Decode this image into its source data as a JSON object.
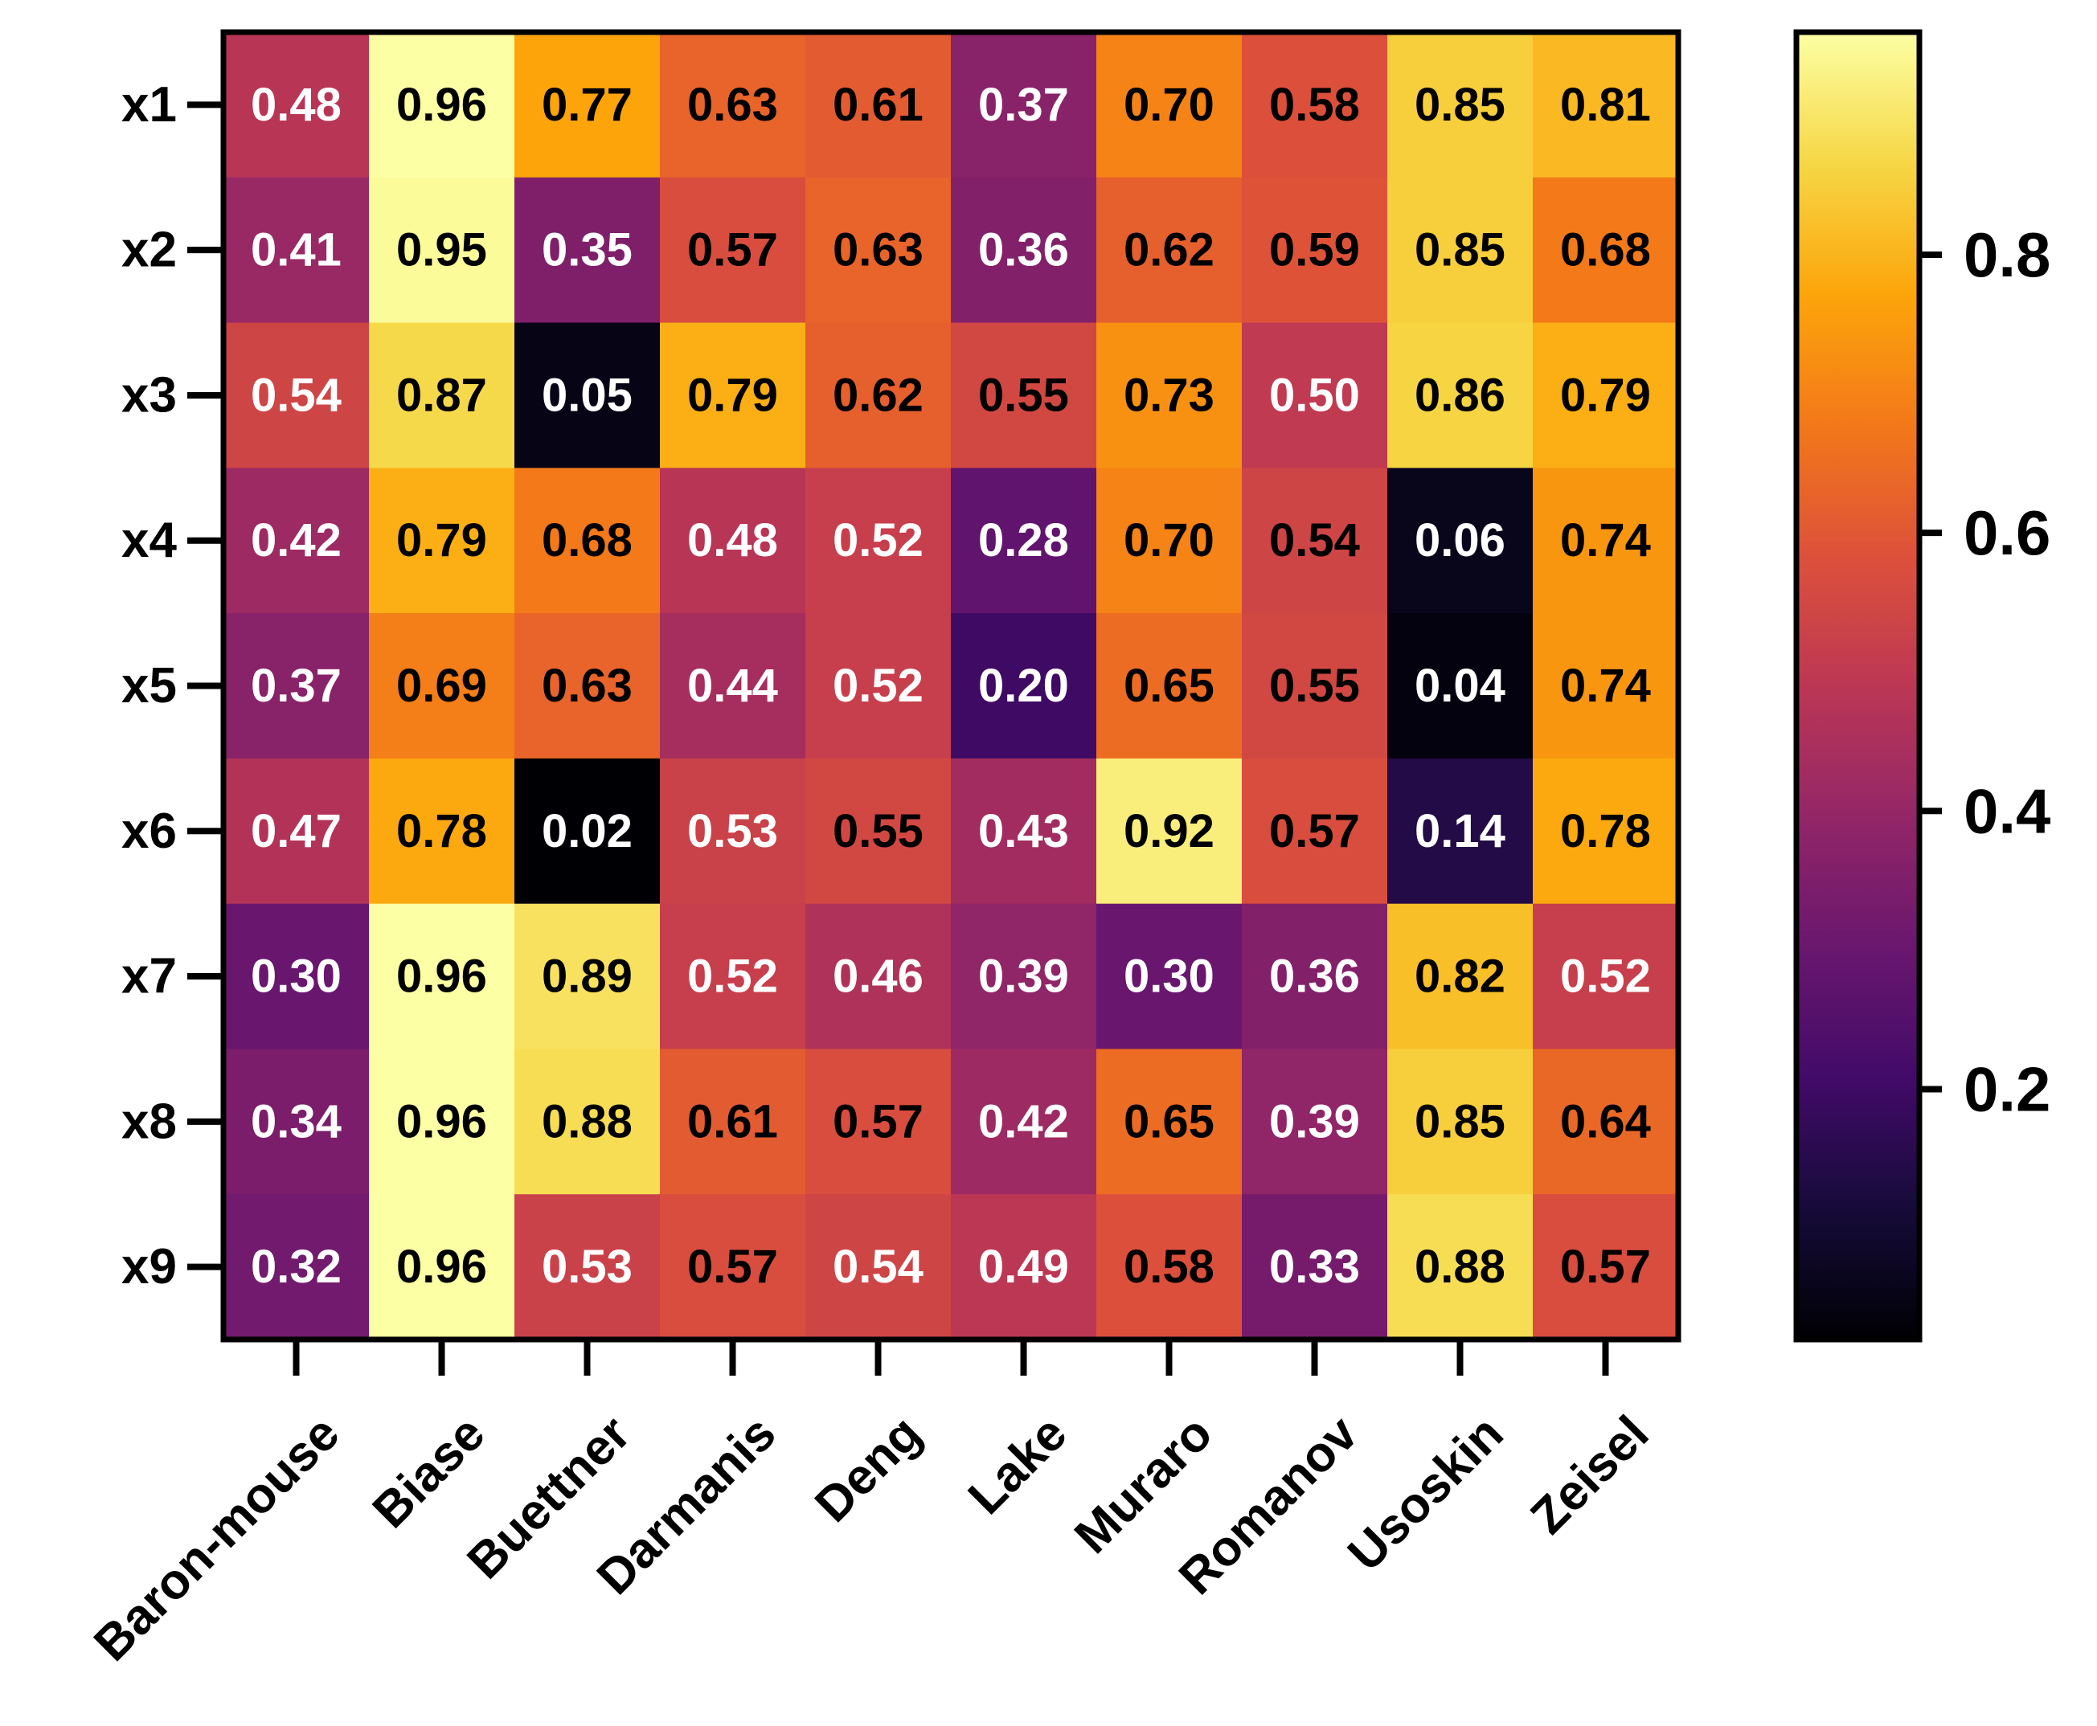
{
  "chart_data": {
    "type": "heatmap",
    "title": "",
    "xlabel": "",
    "ylabel": "",
    "colormap": "inferno",
    "x_categories": [
      "Baron-mouse",
      "Biase",
      "Buettner",
      "Darmanis",
      "Deng",
      "Lake",
      "Muraro",
      "Romanov",
      "Usoskin",
      "Zeisel"
    ],
    "y_categories": [
      "x1",
      "x2",
      "x3",
      "x4",
      "x5",
      "x6",
      "x7",
      "x8",
      "x9"
    ],
    "values": [
      [
        0.48,
        0.96,
        0.77,
        0.63,
        0.61,
        0.37,
        0.7,
        0.58,
        0.85,
        0.81
      ],
      [
        0.41,
        0.95,
        0.35,
        0.57,
        0.63,
        0.36,
        0.62,
        0.59,
        0.85,
        0.68
      ],
      [
        0.54,
        0.87,
        0.05,
        0.79,
        0.62,
        0.55,
        0.73,
        0.5,
        0.86,
        0.79
      ],
      [
        0.42,
        0.79,
        0.68,
        0.48,
        0.52,
        0.28,
        0.7,
        0.54,
        0.06,
        0.74
      ],
      [
        0.37,
        0.69,
        0.63,
        0.44,
        0.52,
        0.2,
        0.65,
        0.55,
        0.04,
        0.74
      ],
      [
        0.47,
        0.78,
        0.02,
        0.53,
        0.55,
        0.43,
        0.92,
        0.57,
        0.14,
        0.78
      ],
      [
        0.3,
        0.96,
        0.89,
        0.52,
        0.46,
        0.39,
        0.3,
        0.36,
        0.82,
        0.52
      ],
      [
        0.34,
        0.96,
        0.88,
        0.61,
        0.57,
        0.42,
        0.65,
        0.39,
        0.85,
        0.64
      ],
      [
        0.32,
        0.96,
        0.53,
        0.57,
        0.54,
        0.49,
        0.58,
        0.33,
        0.88,
        0.57
      ]
    ],
    "value_labels": [
      [
        "0.48",
        "0.96",
        "0.77",
        "0.63",
        "0.61",
        "0.37",
        "0.70",
        "0.58",
        "0.85",
        "0.81"
      ],
      [
        "0.41",
        "0.95",
        "0.35",
        "0.57",
        "0.63",
        "0.36",
        "0.62",
        "0.59",
        "0.85",
        "0.68"
      ],
      [
        "0.54",
        "0.87",
        "0.05",
        "0.79",
        "0.62",
        "0.55",
        "0.73",
        "0.50",
        "0.86",
        "0.79"
      ],
      [
        "0.42",
        "0.79",
        "0.68",
        "0.48",
        "0.52",
        "0.28",
        "0.70",
        "0.54",
        "0.06",
        "0.74"
      ],
      [
        "0.37",
        "0.69",
        "0.63",
        "0.44",
        "0.52",
        "0.20",
        "0.65",
        "0.55",
        "0.04",
        "0.74"
      ],
      [
        "0.47",
        "0.78",
        "0.02",
        "0.53",
        "0.55",
        "0.43",
        "0.92",
        "0.57",
        "0.14",
        "0.78"
      ],
      [
        "0.30",
        "0.96",
        "0.89",
        "0.52",
        "0.46",
        "0.39",
        "0.30",
        "0.36",
        "0.82",
        "0.52"
      ],
      [
        "0.34",
        "0.96",
        "0.88",
        "0.61",
        "0.57",
        "0.42",
        "0.65",
        "0.39",
        "0.85",
        "0.64"
      ],
      [
        "0.32",
        "0.96",
        "0.53",
        "0.57",
        "0.54",
        "0.49",
        "0.58",
        "0.33",
        "0.88",
        "0.57"
      ]
    ],
    "label_colors": [
      [
        "w",
        "k",
        "k",
        "k",
        "k",
        "w",
        "k",
        "k",
        "k",
        "k"
      ],
      [
        "w",
        "k",
        "w",
        "k",
        "k",
        "w",
        "k",
        "k",
        "k",
        "k"
      ],
      [
        "w",
        "k",
        "w",
        "k",
        "k",
        "k",
        "k",
        "w",
        "k",
        "k"
      ],
      [
        "w",
        "k",
        "k",
        "w",
        "w",
        "w",
        "k",
        "k",
        "w",
        "k"
      ],
      [
        "w",
        "k",
        "k",
        "w",
        "w",
        "w",
        "k",
        "k",
        "w",
        "k"
      ],
      [
        "w",
        "k",
        "w",
        "w",
        "k",
        "w",
        "k",
        "k",
        "w",
        "k"
      ],
      [
        "w",
        "k",
        "k",
        "w",
        "w",
        "w",
        "w",
        "w",
        "k",
        "w"
      ],
      [
        "w",
        "k",
        "k",
        "k",
        "k",
        "w",
        "k",
        "w",
        "k",
        "k"
      ],
      [
        "w",
        "k",
        "w",
        "k",
        "w",
        "w",
        "k",
        "w",
        "k",
        "k"
      ]
    ],
    "colorbar": {
      "range": [
        0.02,
        0.96
      ],
      "ticks": [
        0.2,
        0.4,
        0.6,
        0.8
      ],
      "tick_labels": [
        "0.2",
        "0.4",
        "0.6",
        "0.8"
      ]
    },
    "legend": "colorbar right"
  }
}
